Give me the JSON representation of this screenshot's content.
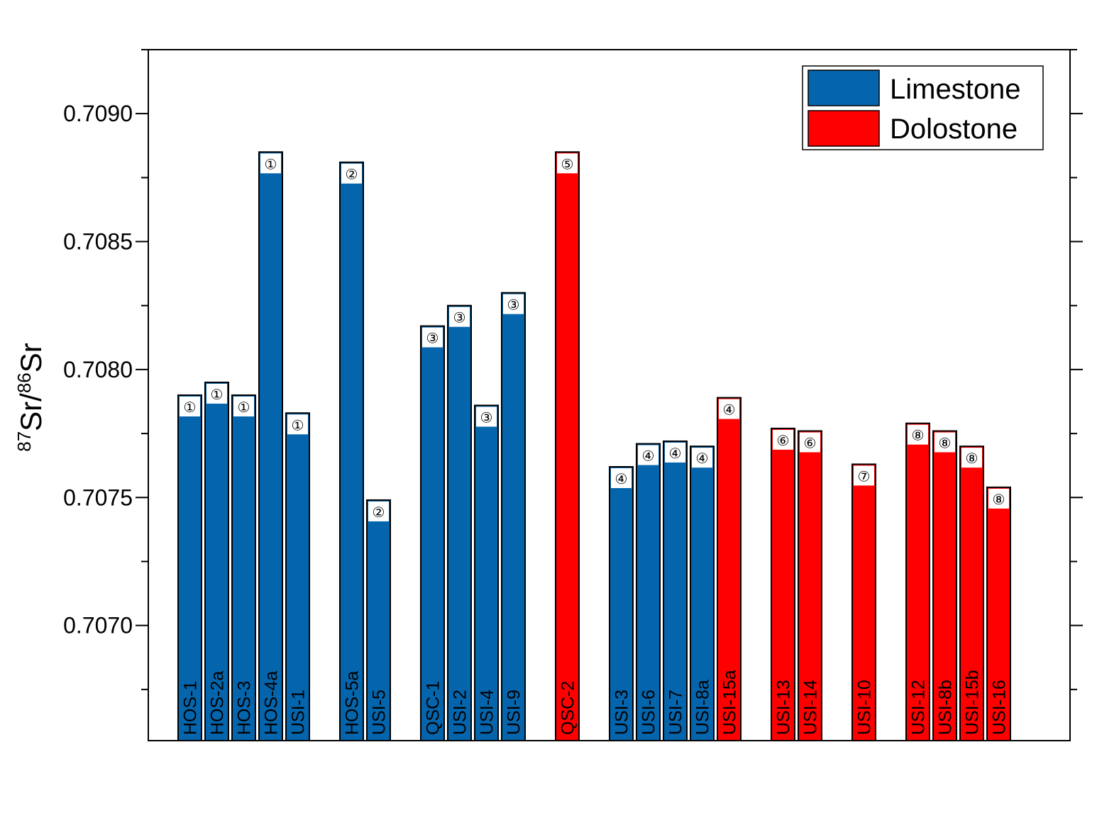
{
  "chart_data": {
    "type": "bar",
    "title": "",
    "xlabel": "",
    "ylabel": {
      "iso1_mass": "87",
      "iso1_elem": "Sr",
      "sep": "/",
      "iso2_mass": "86",
      "iso2_elem": "Sr"
    },
    "ylim": [
      0.70655,
      0.70925
    ],
    "yticks": [
      "0.7070",
      "0.7075",
      "0.7080",
      "0.7085",
      "0.7090"
    ],
    "ytick_values": [
      0.707,
      0.7075,
      0.708,
      0.7085,
      0.709
    ],
    "colors": {
      "Limestone": "#0565ac",
      "Dolostone": "#ff0000"
    },
    "legend": {
      "position": "top-right",
      "entries": [
        "Limestone",
        "Dolostone"
      ]
    },
    "bars": [
      {
        "slot": 0,
        "label": "HOS-1",
        "value": 0.7079,
        "type": "Limestone",
        "group": "①"
      },
      {
        "slot": 1,
        "label": "HOS-2a",
        "value": 0.70795,
        "type": "Limestone",
        "group": "①"
      },
      {
        "slot": 2,
        "label": "HOS-3",
        "value": 0.7079,
        "type": "Limestone",
        "group": "①"
      },
      {
        "slot": 3,
        "label": "HOS-4a",
        "value": 0.70885,
        "type": "Limestone",
        "group": "①"
      },
      {
        "slot": 4,
        "label": "USI-1",
        "value": 0.70783,
        "type": "Limestone",
        "group": "①"
      },
      {
        "slot": 6,
        "label": "HOS-5a",
        "value": 0.70881,
        "type": "Limestone",
        "group": "②"
      },
      {
        "slot": 7,
        "label": "USI-5",
        "value": 0.70749,
        "type": "Limestone",
        "group": "②"
      },
      {
        "slot": 9,
        "label": "QSC-1",
        "value": 0.70817,
        "type": "Limestone",
        "group": "③"
      },
      {
        "slot": 10,
        "label": "USI-2",
        "value": 0.70825,
        "type": "Limestone",
        "group": "③"
      },
      {
        "slot": 11,
        "label": "USI-4",
        "value": 0.70786,
        "type": "Limestone",
        "group": "③"
      },
      {
        "slot": 12,
        "label": "USI-9",
        "value": 0.7083,
        "type": "Limestone",
        "group": "③"
      },
      {
        "slot": 14,
        "label": "QSC-2",
        "value": 0.70885,
        "type": "Dolostone",
        "group": "⑤"
      },
      {
        "slot": 16,
        "label": "USI-3",
        "value": 0.70762,
        "type": "Limestone",
        "group": "④"
      },
      {
        "slot": 17,
        "label": "USI-6",
        "value": 0.70771,
        "type": "Limestone",
        "group": "④"
      },
      {
        "slot": 18,
        "label": "USI-7",
        "value": 0.70772,
        "type": "Limestone",
        "group": "④"
      },
      {
        "slot": 19,
        "label": "USI-8a",
        "value": 0.7077,
        "type": "Limestone",
        "group": "④"
      },
      {
        "slot": 20,
        "label": "USI-15a",
        "value": 0.70789,
        "type": "Dolostone",
        "group": "④"
      },
      {
        "slot": 22,
        "label": "USI-13",
        "value": 0.70777,
        "type": "Dolostone",
        "group": "⑥"
      },
      {
        "slot": 23,
        "label": "USI-14",
        "value": 0.70776,
        "type": "Dolostone",
        "group": "⑥"
      },
      {
        "slot": 25,
        "label": "USI-10",
        "value": 0.70763,
        "type": "Dolostone",
        "group": "⑦"
      },
      {
        "slot": 27,
        "label": "USI-12",
        "value": 0.70779,
        "type": "Dolostone",
        "group": "⑧"
      },
      {
        "slot": 28,
        "label": "USI-8b",
        "value": 0.70776,
        "type": "Dolostone",
        "group": "⑧"
      },
      {
        "slot": 29,
        "label": "USI-15b",
        "value": 0.7077,
        "type": "Dolostone",
        "group": "⑧"
      },
      {
        "slot": 30,
        "label": "USI-16",
        "value": 0.70754,
        "type": "Dolostone",
        "group": "⑧"
      }
    ]
  }
}
